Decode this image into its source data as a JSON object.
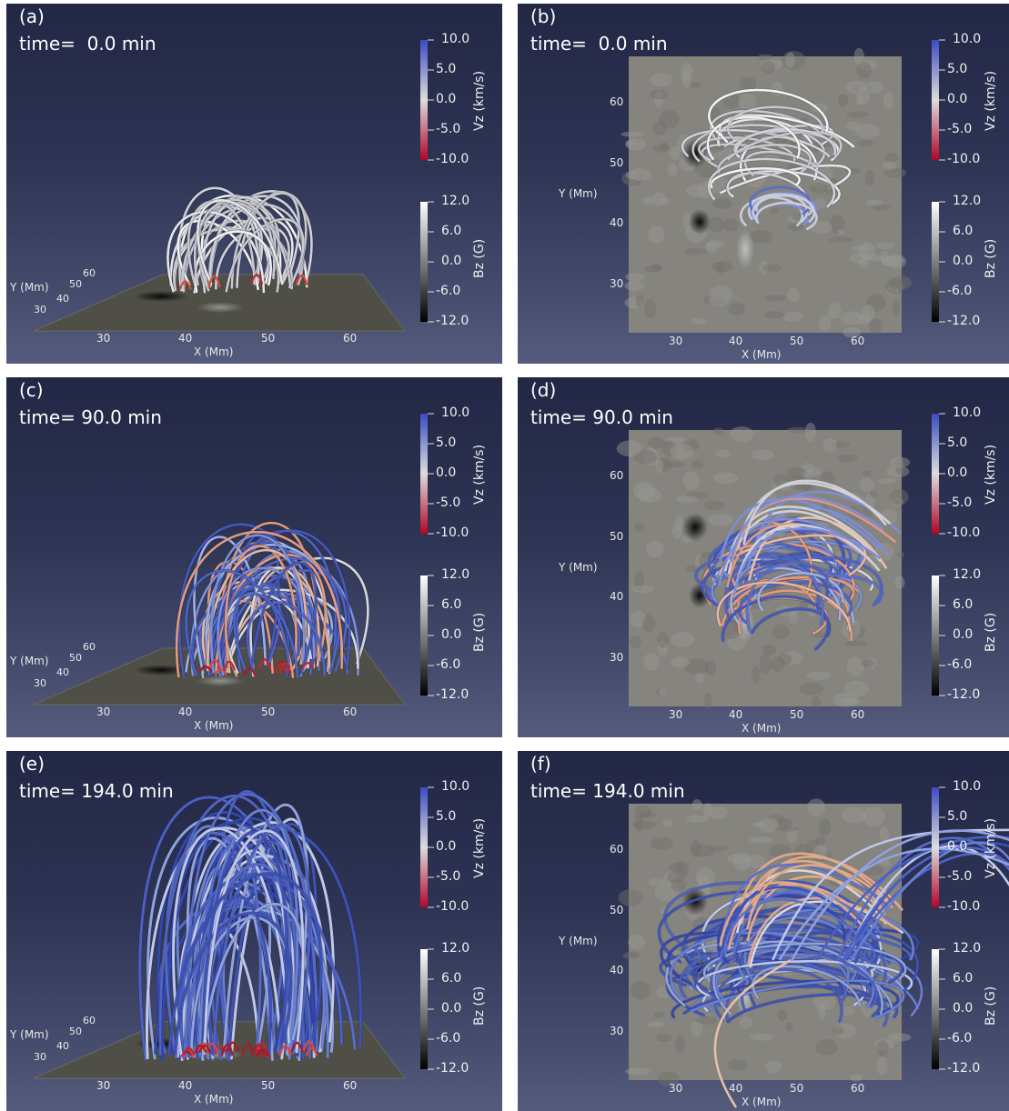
{
  "panels": [
    {
      "label": "(a)",
      "time": "time=  0.0 min",
      "view": "3d",
      "lines": "white",
      "stage": 0
    },
    {
      "label": "(b)",
      "time": "time=  0.0 min",
      "view": "top",
      "lines": "white",
      "stage": 0
    },
    {
      "label": "(c)",
      "time": "time= 90.0 min",
      "view": "3d",
      "lines": "mixed",
      "stage": 1
    },
    {
      "label": "(d)",
      "time": "time= 90.0 min",
      "view": "top",
      "lines": "mixed",
      "stage": 1
    },
    {
      "label": "(e)",
      "time": "time= 194.0 min",
      "view": "3d",
      "lines": "blue",
      "stage": 2
    },
    {
      "label": "(f)",
      "time": "time= 194.0 min",
      "view": "top",
      "lines": "blue",
      "stage": 2
    }
  ],
  "colorbar_vz": {
    "title": "Vz (km/s)",
    "ticks": [
      "10.0",
      "5.0",
      "0.0",
      "-5.0",
      "-10.0"
    ],
    "colors": [
      "#3b4cc0",
      "#dddddd",
      "#b40426"
    ]
  },
  "colorbar_bz": {
    "title": "Bz (G)",
    "ticks": [
      "12.0",
      "6.0",
      "0.0",
      "-6.0",
      "-12.0"
    ],
    "colors": [
      "#ffffff",
      "#000000"
    ]
  },
  "axes_3d": {
    "xlabel": "X (Mm)",
    "ylabel": "Y (Mm)",
    "xticks": [
      "30",
      "40",
      "50",
      "60"
    ],
    "yticks": [
      "30",
      "40",
      "50",
      "60"
    ]
  },
  "axes_top": {
    "xlabel": "X (Mm)",
    "ylabel": "Y (Mm)",
    "xticks": [
      "30",
      "40",
      "50",
      "60"
    ],
    "yticks": [
      "60",
      "50",
      "40",
      "30"
    ]
  }
}
